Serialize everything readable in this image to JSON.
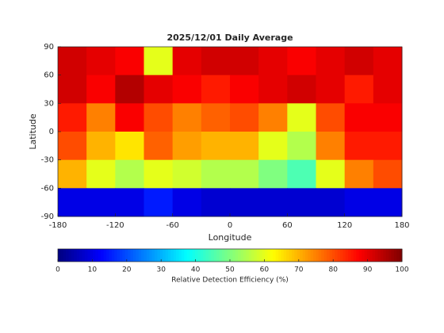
{
  "chart_data": {
    "type": "heatmap",
    "title": "2025/12/01 Daily Average",
    "x_label": "Longitude",
    "y_label": "Latitude",
    "xlim": [
      -180,
      180
    ],
    "ylim": [
      -90,
      90
    ],
    "xticks": [
      -180,
      -120,
      -60,
      0,
      60,
      120,
      180
    ],
    "yticks": [
      -90,
      -60,
      -30,
      0,
      30,
      60,
      90
    ],
    "x": [
      -165,
      -135,
      -105,
      -75,
      -45,
      -15,
      15,
      45,
      75,
      105,
      135,
      165
    ],
    "y": [
      75,
      45,
      15,
      -15,
      -45,
      -75
    ],
    "values": [
      [
        92,
        90,
        88,
        60,
        90,
        92,
        92,
        90,
        88,
        90,
        92,
        90
      ],
      [
        92,
        88,
        95,
        90,
        88,
        85,
        88,
        90,
        92,
        90,
        85,
        90
      ],
      [
        85,
        75,
        88,
        80,
        75,
        78,
        80,
        75,
        60,
        80,
        88,
        88
      ],
      [
        80,
        70,
        65,
        78,
        72,
        70,
        70,
        60,
        55,
        75,
        85,
        85
      ],
      [
        70,
        60,
        55,
        60,
        58,
        55,
        55,
        50,
        45,
        60,
        75,
        80
      ],
      [
        10,
        10,
        10,
        15,
        10,
        8,
        8,
        8,
        8,
        8,
        10,
        10
      ]
    ],
    "colormap": "jet",
    "clim": [
      0,
      100
    ],
    "colorbar_ticks": [
      0,
      10,
      20,
      30,
      40,
      50,
      60,
      70,
      80,
      90,
      100
    ],
    "colorbar_label": "Relative Detection Efficiency (%)"
  }
}
